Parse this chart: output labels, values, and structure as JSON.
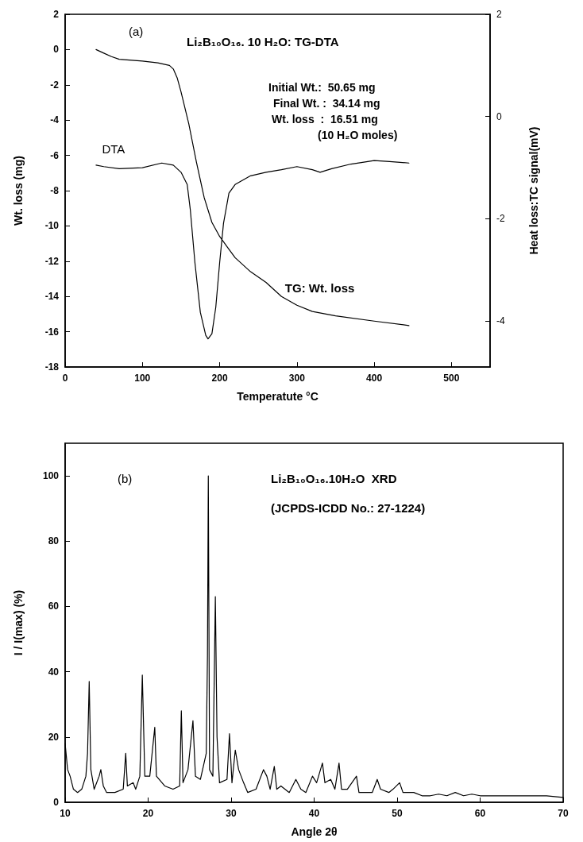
{
  "chart_data": [
    {
      "type": "line",
      "title": "Li₂B₁₀O₁₆. 10 H₂O: TG-DTA",
      "xlabel": "Temperatute °C",
      "ylabel": "Wt. loss (mg)",
      "y2label": "Heat loss:TC signal(mV)",
      "annotations": [
        "(a)",
        "Initial Wt.:  50.65 mg",
        "Final Wt. :  34.14 mg",
        "Wt. loss  :  16.51 mg",
        "(10 H₂O moles)"
      ],
      "series": [
        {
          "name": "TG: Wt. loss",
          "color": "#000000",
          "x": [
            40,
            50,
            60,
            70,
            100,
            120,
            135,
            140,
            145,
            150,
            160,
            170,
            180,
            190,
            200,
            210,
            220,
            240,
            260,
            280,
            300,
            320,
            350,
            400,
            445
          ],
          "values": [
            0,
            -0.2,
            -0.4,
            -0.55,
            -0.65,
            -0.75,
            -0.9,
            -1.1,
            -1.6,
            -2.4,
            -4.2,
            -6.4,
            -8.4,
            -9.8,
            -10.6,
            -11.2,
            -11.8,
            -12.6,
            -13.2,
            -14,
            -14.5,
            -14.85,
            -15.1,
            -15.4,
            -15.65
          ]
        },
        {
          "name": "DTA",
          "color": "#000000",
          "axis": "y2",
          "x": [
            40,
            50,
            70,
            100,
            125,
            140,
            150,
            158,
            162,
            168,
            175,
            182,
            185,
            190,
            195,
            200,
            205,
            212,
            220,
            240,
            260,
            280,
            300,
            320,
            330,
            345,
            370,
            400,
            420,
            445
          ],
          "values": [
            -0.95,
            -0.98,
            -1.02,
            -1,
            -0.91,
            -0.95,
            -1.09,
            -1.33,
            -1.82,
            -2.86,
            -3.83,
            -4.28,
            -4.35,
            -4.25,
            -3.73,
            -2.86,
            -2.09,
            -1.5,
            -1.33,
            -1.16,
            -1.09,
            -1.04,
            -0.98,
            -1.04,
            -1.09,
            -1.02,
            -0.93,
            -0.86,
            -0.88,
            -0.91
          ]
        }
      ],
      "xlim": [
        0,
        550
      ],
      "xticks": [
        0,
        100,
        200,
        300,
        400,
        500
      ],
      "ylim": [
        -18,
        2
      ],
      "yticks": [
        -18,
        -16,
        -14,
        -12,
        -10,
        -8,
        -6,
        -4,
        -2,
        0,
        2
      ],
      "y2lim": [
        -4.9,
        2
      ],
      "y2ticks": [
        -4,
        -2,
        0,
        2
      ],
      "grid": false,
      "legend": false,
      "marker": "none",
      "line_style": "solid"
    },
    {
      "type": "line",
      "title": "Li₂B₁₀O₁₆.10H₂O  XRD",
      "subtitle": "(JCPDS-ICDD No.: 27-1224)",
      "xlabel": "Angle 2θ",
      "ylabel": "I / I(max) (%)",
      "annotations": [
        "(b)"
      ],
      "x": [
        10,
        10.3,
        10.6,
        11,
        11.5,
        12,
        12.5,
        12.7,
        12.9,
        13.1,
        13.5,
        14.1,
        14.3,
        14.6,
        15,
        16,
        17,
        17.3,
        17.5,
        18.2,
        18.5,
        19,
        19.3,
        19.6,
        20.2,
        20.8,
        21,
        22,
        23,
        23.8,
        24,
        24.2,
        24.8,
        25.4,
        25.7,
        26.3,
        27,
        27.15,
        27.25,
        27.4,
        27.8,
        28.1,
        28.3,
        28.6,
        29.5,
        29.8,
        30.1,
        30.5,
        30.9,
        31.5,
        32,
        33,
        33.9,
        34.3,
        34.7,
        35.2,
        35.5,
        36,
        37,
        37.8,
        38.4,
        39,
        39.8,
        40.3,
        41,
        41.3,
        42,
        42.5,
        43,
        43.3,
        44,
        45.1,
        45.4,
        46,
        47,
        47.6,
        48,
        49,
        49.5,
        50.3,
        50.7,
        52,
        53,
        54,
        55,
        56,
        57,
        58,
        59,
        60,
        62,
        64,
        66,
        68,
        70
      ],
      "series": [
        {
          "color": "#000000",
          "values": [
            18,
            10,
            8,
            4,
            3,
            4,
            8,
            15,
            37,
            10,
            4,
            8,
            10,
            5,
            3,
            3,
            4,
            15,
            5,
            6,
            4,
            8,
            39,
            8,
            8,
            23,
            8,
            5,
            4,
            5,
            28,
            6,
            10,
            25,
            8,
            7,
            15,
            45,
            100,
            10,
            8,
            63,
            20,
            6,
            7,
            21,
            6,
            16,
            10,
            6,
            3,
            4,
            10,
            8,
            4,
            11,
            4,
            5,
            3,
            7,
            4,
            3,
            8,
            6,
            12,
            6,
            7,
            4,
            12,
            4,
            4,
            8,
            3,
            3,
            3,
            7,
            4,
            3,
            4,
            6,
            3,
            3,
            2,
            2,
            2.5,
            2,
            3,
            2,
            2.5,
            2,
            2,
            2,
            2,
            2,
            1.5
          ]
        }
      ],
      "xlim": [
        10,
        70
      ],
      "xticks": [
        10,
        20,
        30,
        40,
        50,
        60,
        70
      ],
      "ylim": [
        0,
        110
      ],
      "yticks": [
        0,
        20,
        40,
        60,
        80,
        100
      ],
      "grid": false,
      "legend": false,
      "marker": "none",
      "line_style": "solid"
    }
  ]
}
